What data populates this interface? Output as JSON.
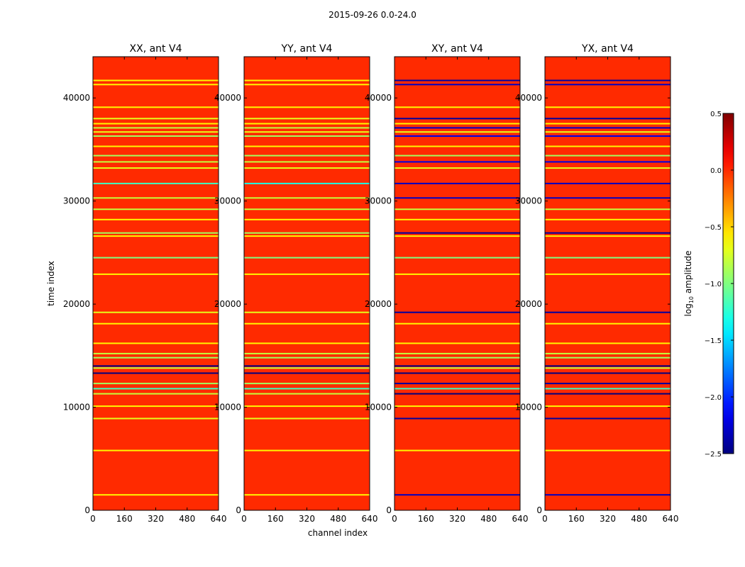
{
  "figure": {
    "suptitle": "2015-09-26 0.0-24.0"
  },
  "chart_data": {
    "type": "heatmap",
    "xlabel": "channel index",
    "ylabel": "time index",
    "xlim": [
      0,
      640
    ],
    "ylim": [
      0,
      44000
    ],
    "xticks": [
      0,
      160,
      320,
      480,
      640
    ],
    "yticks": [
      0,
      10000,
      20000,
      30000,
      40000
    ],
    "background_value": 0.0,
    "colorbar": {
      "label": "log10 amplitude",
      "label_base": "log",
      "label_sub": "10",
      "label_rest": " amplitude",
      "vmin": -2.5,
      "vmax": 0.5,
      "ticks": [
        0.5,
        0.0,
        -0.5,
        -1.0,
        -1.5,
        -2.0,
        -2.5
      ],
      "tick_labels": [
        "0.5",
        "0.0",
        "−0.5",
        "−1.0",
        "−1.5",
        "−2.0",
        "−2.5"
      ],
      "colormap": "jet"
    },
    "panels": [
      {
        "title": "XX, ant V4",
        "rows": [
          {
            "t": 1500,
            "v": -0.6
          },
          {
            "t": 5800,
            "v": -0.6
          },
          {
            "t": 8900,
            "v": -0.7
          },
          {
            "t": 10100,
            "v": -0.6
          },
          {
            "t": 11300,
            "v": -0.8
          },
          {
            "t": 11800,
            "v": -1.2
          },
          {
            "t": 12300,
            "v": -0.9
          },
          {
            "t": 13300,
            "v": -2.6
          },
          {
            "t": 13800,
            "v": -0.8
          },
          {
            "t": 14000,
            "v": -2.6
          },
          {
            "t": 14800,
            "v": -0.9
          },
          {
            "t": 15200,
            "v": -0.8
          },
          {
            "t": 16200,
            "v": -0.6
          },
          {
            "t": 18100,
            "v": -0.6
          },
          {
            "t": 19200,
            "v": -0.7
          },
          {
            "t": 22900,
            "v": -0.6
          },
          {
            "t": 24500,
            "v": -1.0
          },
          {
            "t": 26600,
            "v": -0.6
          },
          {
            "t": 26900,
            "v": -0.9
          },
          {
            "t": 28200,
            "v": -0.6
          },
          {
            "t": 29200,
            "v": -0.8
          },
          {
            "t": 30300,
            "v": -0.8
          },
          {
            "t": 31700,
            "v": -1.2
          },
          {
            "t": 33200,
            "v": -0.7
          },
          {
            "t": 33800,
            "v": -0.8
          },
          {
            "t": 34400,
            "v": -0.9
          },
          {
            "t": 35300,
            "v": -0.6
          },
          {
            "t": 36300,
            "v": -0.9
          },
          {
            "t": 36700,
            "v": -0.7
          },
          {
            "t": 37100,
            "v": -0.8
          },
          {
            "t": 37500,
            "v": -0.6
          },
          {
            "t": 38000,
            "v": -0.7
          },
          {
            "t": 39100,
            "v": -0.6
          },
          {
            "t": 41300,
            "v": -0.6
          },
          {
            "t": 41700,
            "v": -0.6
          }
        ]
      },
      {
        "title": "YY, ant V4",
        "rows": [
          {
            "t": 1500,
            "v": -0.6
          },
          {
            "t": 5800,
            "v": -0.6
          },
          {
            "t": 8900,
            "v": -0.7
          },
          {
            "t": 10100,
            "v": -0.6
          },
          {
            "t": 11300,
            "v": -0.8
          },
          {
            "t": 11800,
            "v": -1.2
          },
          {
            "t": 12300,
            "v": -0.9
          },
          {
            "t": 13300,
            "v": -2.6
          },
          {
            "t": 13800,
            "v": -0.8
          },
          {
            "t": 14000,
            "v": -2.6
          },
          {
            "t": 14800,
            "v": -0.9
          },
          {
            "t": 15200,
            "v": -0.8
          },
          {
            "t": 16200,
            "v": -0.6
          },
          {
            "t": 18100,
            "v": -0.6
          },
          {
            "t": 19200,
            "v": -0.7
          },
          {
            "t": 22900,
            "v": -0.6
          },
          {
            "t": 24500,
            "v": -1.0
          },
          {
            "t": 26600,
            "v": -0.6
          },
          {
            "t": 26900,
            "v": -0.9
          },
          {
            "t": 28200,
            "v": -0.6
          },
          {
            "t": 29200,
            "v": -0.8
          },
          {
            "t": 30300,
            "v": -0.8
          },
          {
            "t": 31700,
            "v": -1.3
          },
          {
            "t": 33200,
            "v": -0.7
          },
          {
            "t": 33800,
            "v": -0.8
          },
          {
            "t": 34400,
            "v": -0.9
          },
          {
            "t": 35300,
            "v": -0.6
          },
          {
            "t": 36300,
            "v": -0.9
          },
          {
            "t": 36700,
            "v": -0.7
          },
          {
            "t": 37100,
            "v": -0.8
          },
          {
            "t": 37500,
            "v": -0.6
          },
          {
            "t": 38000,
            "v": -0.7
          },
          {
            "t": 39100,
            "v": -0.6
          },
          {
            "t": 41300,
            "v": -0.6
          },
          {
            "t": 41700,
            "v": -0.6
          }
        ]
      },
      {
        "title": "XY, ant V4",
        "rows": [
          {
            "t": 1500,
            "v": -2.3
          },
          {
            "t": 5800,
            "v": -0.6
          },
          {
            "t": 8900,
            "v": -2.4
          },
          {
            "t": 10100,
            "v": -0.6
          },
          {
            "t": 11300,
            "v": -2.5
          },
          {
            "t": 11800,
            "v": -1.2
          },
          {
            "t": 12300,
            "v": -2.4
          },
          {
            "t": 13300,
            "v": -2.6
          },
          {
            "t": 13800,
            "v": -0.8
          },
          {
            "t": 14000,
            "v": -2.6
          },
          {
            "t": 14800,
            "v": -0.9
          },
          {
            "t": 15200,
            "v": -0.8
          },
          {
            "t": 16200,
            "v": -0.6
          },
          {
            "t": 18100,
            "v": -0.6
          },
          {
            "t": 19200,
            "v": -2.4
          },
          {
            "t": 22900,
            "v": -0.6
          },
          {
            "t": 24500,
            "v": -1.0
          },
          {
            "t": 26600,
            "v": -0.6
          },
          {
            "t": 26900,
            "v": -2.4
          },
          {
            "t": 28200,
            "v": -0.6
          },
          {
            "t": 29200,
            "v": -0.8
          },
          {
            "t": 30300,
            "v": -2.3
          },
          {
            "t": 31700,
            "v": -2.3
          },
          {
            "t": 33200,
            "v": -0.7
          },
          {
            "t": 33800,
            "v": -2.2
          },
          {
            "t": 34400,
            "v": -0.9
          },
          {
            "t": 35300,
            "v": -0.6
          },
          {
            "t": 36300,
            "v": -2.2
          },
          {
            "t": 36700,
            "v": -0.7
          },
          {
            "t": 37100,
            "v": -2.3
          },
          {
            "t": 37500,
            "v": -0.6
          },
          {
            "t": 38000,
            "v": -2.4
          },
          {
            "t": 39100,
            "v": -0.6
          },
          {
            "t": 41300,
            "v": -2.3
          },
          {
            "t": 41700,
            "v": -2.4
          }
        ]
      },
      {
        "title": "YX, ant V4",
        "rows": [
          {
            "t": 1500,
            "v": -2.3
          },
          {
            "t": 5800,
            "v": -0.6
          },
          {
            "t": 8900,
            "v": -2.4
          },
          {
            "t": 10100,
            "v": -0.6
          },
          {
            "t": 11300,
            "v": -2.5
          },
          {
            "t": 11800,
            "v": -1.2
          },
          {
            "t": 12300,
            "v": -2.4
          },
          {
            "t": 13300,
            "v": -2.6
          },
          {
            "t": 13800,
            "v": -0.8
          },
          {
            "t": 14000,
            "v": -2.6
          },
          {
            "t": 14800,
            "v": -0.9
          },
          {
            "t": 15200,
            "v": -0.8
          },
          {
            "t": 16200,
            "v": -0.6
          },
          {
            "t": 18100,
            "v": -0.6
          },
          {
            "t": 19200,
            "v": -2.4
          },
          {
            "t": 22900,
            "v": -0.6
          },
          {
            "t": 24500,
            "v": -1.0
          },
          {
            "t": 26600,
            "v": -0.6
          },
          {
            "t": 26900,
            "v": -2.4
          },
          {
            "t": 28200,
            "v": -0.6
          },
          {
            "t": 29200,
            "v": -0.8
          },
          {
            "t": 30300,
            "v": -2.3
          },
          {
            "t": 31700,
            "v": -2.3
          },
          {
            "t": 33200,
            "v": -0.7
          },
          {
            "t": 33800,
            "v": -2.2
          },
          {
            "t": 34400,
            "v": -0.9
          },
          {
            "t": 35300,
            "v": -0.6
          },
          {
            "t": 36300,
            "v": -2.2
          },
          {
            "t": 36700,
            "v": -0.7
          },
          {
            "t": 37100,
            "v": -2.3
          },
          {
            "t": 37500,
            "v": -0.6
          },
          {
            "t": 38000,
            "v": -2.4
          },
          {
            "t": 39100,
            "v": -0.6
          },
          {
            "t": 41300,
            "v": -2.3
          },
          {
            "t": 41700,
            "v": -2.4
          }
        ]
      }
    ]
  }
}
